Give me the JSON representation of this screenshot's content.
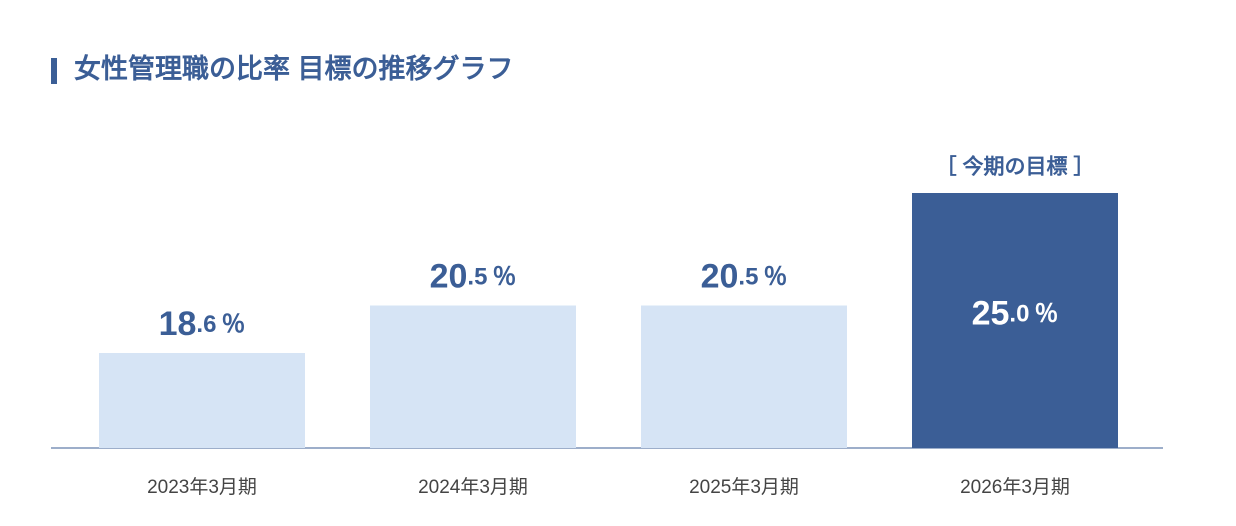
{
  "chart_data": {
    "type": "bar",
    "title": "女性管理職の比率 目標の推移グラフ",
    "categories": [
      "2023年3月期",
      "2024年3月期",
      "2025年3月期",
      "2026年3月期"
    ],
    "values": [
      18.6,
      20.5,
      20.5,
      25.0
    ],
    "value_labels": [
      "18.6％",
      "20.5％",
      "20.5％",
      "25.0％"
    ],
    "colors": [
      "#d6e4f5",
      "#d6e4f5",
      "#d6e4f5",
      "#3b5e96"
    ],
    "annotations": [
      {
        "text": "［ 今期の目標 ］",
        "index": 3
      }
    ],
    "ylim": [
      14.8,
      25
    ]
  }
}
